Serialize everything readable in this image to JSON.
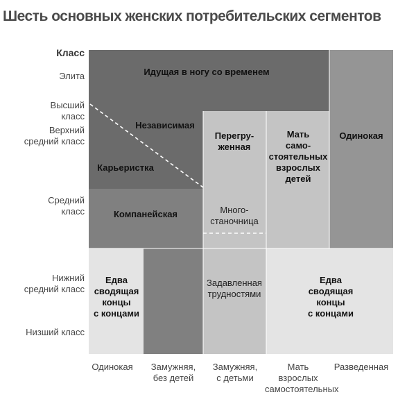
{
  "title": "Шесть основных женских потребительских сегментов",
  "y_axis": {
    "header": "Класс",
    "labels": [
      [
        "Элита"
      ],
      [
        "Высший",
        "класс"
      ],
      [
        "Верхний",
        "средний класс"
      ],
      [
        "Средний",
        "класс"
      ],
      [
        "Нижний",
        "средний класс"
      ],
      [
        "Низший класс"
      ]
    ]
  },
  "x_axis": {
    "labels": [
      [
        "Одинокая"
      ],
      [
        "Замужняя,",
        "без детей"
      ],
      [
        "Замужняя,",
        "с детьми"
      ],
      [
        "Мать",
        "взрослых",
        "самостоятельных"
      ],
      [
        "Разведенная"
      ]
    ]
  },
  "segments": {
    "idushchaya": [
      "Идущая в ногу со временем"
    ],
    "nezavisimaya": [
      "Независимая"
    ],
    "kareristka": [
      "Карьеристка"
    ],
    "kompaneyskaya": [
      "Компанейская"
    ],
    "peregruzhennaya": [
      "Перегру-",
      "женная"
    ],
    "mnogostanochnitsa": [
      "Много-",
      "станочница"
    ],
    "mat": [
      "Мать",
      "само-",
      "стоятельных",
      "взрослых",
      "детей"
    ],
    "odinokaya": [
      "Одинокая"
    ],
    "edva_left": [
      "Едва",
      "сводящая",
      "концы",
      "с концами"
    ],
    "zadavlennaya": [
      "Задавленная",
      "трудностями"
    ],
    "edva_right": [
      "Едва",
      "сводящая",
      "концы",
      "с концами"
    ]
  },
  "colors": {
    "darkest": "#6b6b6b",
    "dark": "#808080",
    "mid": "#959595",
    "medium_light": "#a8a8a8",
    "light": "#c4c4c4",
    "lightest": "#e4e4e4",
    "white_line": "#ffffff"
  }
}
